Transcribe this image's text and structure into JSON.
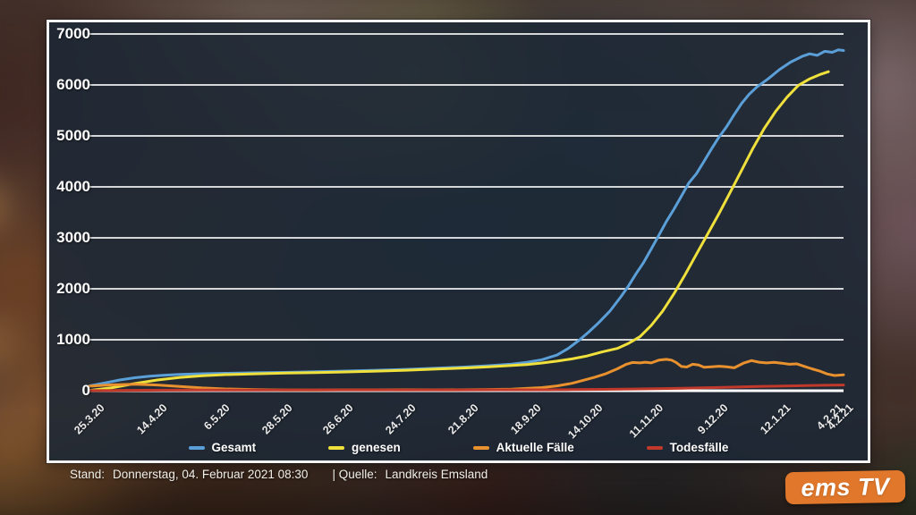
{
  "chart_data": {
    "type": "line",
    "title": "",
    "xlabel": "",
    "ylabel": "",
    "ylim": [
      0,
      7000
    ],
    "grid": true,
    "legend_position": "bottom",
    "y_axis": {
      "ticks": [
        {
          "label": "7000",
          "value": 7000
        },
        {
          "label": "6000",
          "value": 6000
        },
        {
          "label": "5000",
          "value": 5000
        },
        {
          "label": "4000",
          "value": 4000
        },
        {
          "label": "3000",
          "value": 3000
        },
        {
          "label": "2000",
          "value": 2000
        },
        {
          "label": "1000",
          "value": 1000
        },
        {
          "label": "0",
          "value": 0
        }
      ]
    },
    "x_axis": {
      "ticks": [
        {
          "label": "25.3.20",
          "t": 0.0
        },
        {
          "label": "14.4.20",
          "t": 0.083
        },
        {
          "label": "6.5.20",
          "t": 0.166
        },
        {
          "label": "28.5.20",
          "t": 0.249
        },
        {
          "label": "26.6.20",
          "t": 0.329
        },
        {
          "label": "24.7.20",
          "t": 0.412
        },
        {
          "label": "21.8.20",
          "t": 0.495
        },
        {
          "label": "18.9.20",
          "t": 0.578
        },
        {
          "label": "14.10.20",
          "t": 0.66
        },
        {
          "label": "11.11.20",
          "t": 0.741
        },
        {
          "label": "9.12.20",
          "t": 0.827
        },
        {
          "label": "12.1.21",
          "t": 0.91
        },
        {
          "label": "4.2.21",
          "t": 0.978
        },
        {
          "label": "4.2.21",
          "t": 0.993
        }
      ]
    },
    "series": [
      {
        "name": "Gesamt",
        "color": "#5b9fd8",
        "points": [
          [
            0,
            95
          ],
          [
            0.02,
            150
          ],
          [
            0.04,
            210
          ],
          [
            0.06,
            255
          ],
          [
            0.08,
            285
          ],
          [
            0.1,
            305
          ],
          [
            0.12,
            320
          ],
          [
            0.15,
            333
          ],
          [
            0.18,
            342
          ],
          [
            0.22,
            352
          ],
          [
            0.26,
            360
          ],
          [
            0.3,
            372
          ],
          [
            0.34,
            386
          ],
          [
            0.38,
            402
          ],
          [
            0.42,
            420
          ],
          [
            0.46,
            442
          ],
          [
            0.5,
            466
          ],
          [
            0.53,
            492
          ],
          [
            0.56,
            522
          ],
          [
            0.58,
            558
          ],
          [
            0.6,
            608
          ],
          [
            0.62,
            700
          ],
          [
            0.635,
            830
          ],
          [
            0.65,
            1000
          ],
          [
            0.662,
            1150
          ],
          [
            0.675,
            1330
          ],
          [
            0.69,
            1560
          ],
          [
            0.705,
            1850
          ],
          [
            0.715,
            2060
          ],
          [
            0.725,
            2300
          ],
          [
            0.735,
            2520
          ],
          [
            0.745,
            2780
          ],
          [
            0.755,
            3050
          ],
          [
            0.765,
            3320
          ],
          [
            0.775,
            3560
          ],
          [
            0.785,
            3820
          ],
          [
            0.795,
            4080
          ],
          [
            0.805,
            4260
          ],
          [
            0.815,
            4500
          ],
          [
            0.825,
            4750
          ],
          [
            0.835,
            4980
          ],
          [
            0.845,
            5180
          ],
          [
            0.855,
            5420
          ],
          [
            0.865,
            5640
          ],
          [
            0.875,
            5820
          ],
          [
            0.885,
            5960
          ],
          [
            0.9,
            6120
          ],
          [
            0.915,
            6300
          ],
          [
            0.93,
            6450
          ],
          [
            0.945,
            6560
          ],
          [
            0.955,
            6610
          ],
          [
            0.965,
            6580
          ],
          [
            0.975,
            6660
          ],
          [
            0.985,
            6640
          ],
          [
            0.993,
            6690
          ],
          [
            1.0,
            6675
          ]
        ]
      },
      {
        "name": "genesen",
        "color": "#f0e03c",
        "points": [
          [
            0,
            5
          ],
          [
            0.03,
            60
          ],
          [
            0.06,
            140
          ],
          [
            0.09,
            210
          ],
          [
            0.12,
            262
          ],
          [
            0.15,
            295
          ],
          [
            0.18,
            315
          ],
          [
            0.22,
            332
          ],
          [
            0.26,
            345
          ],
          [
            0.3,
            356
          ],
          [
            0.34,
            368
          ],
          [
            0.38,
            384
          ],
          [
            0.42,
            402
          ],
          [
            0.46,
            424
          ],
          [
            0.5,
            447
          ],
          [
            0.53,
            468
          ],
          [
            0.56,
            494
          ],
          [
            0.58,
            514
          ],
          [
            0.6,
            544
          ],
          [
            0.62,
            580
          ],
          [
            0.64,
            625
          ],
          [
            0.66,
            682
          ],
          [
            0.68,
            762
          ],
          [
            0.7,
            830
          ],
          [
            0.715,
            930
          ],
          [
            0.73,
            1060
          ],
          [
            0.745,
            1280
          ],
          [
            0.76,
            1560
          ],
          [
            0.775,
            1900
          ],
          [
            0.79,
            2280
          ],
          [
            0.805,
            2680
          ],
          [
            0.82,
            3080
          ],
          [
            0.835,
            3480
          ],
          [
            0.85,
            3900
          ],
          [
            0.865,
            4330
          ],
          [
            0.88,
            4760
          ],
          [
            0.895,
            5150
          ],
          [
            0.91,
            5480
          ],
          [
            0.925,
            5760
          ],
          [
            0.94,
            5990
          ],
          [
            0.955,
            6120
          ],
          [
            0.968,
            6200
          ],
          [
            0.98,
            6260
          ]
        ]
      },
      {
        "name": "Aktuelle Fälle",
        "color": "#e8912e",
        "points": [
          [
            0,
            90
          ],
          [
            0.03,
            115
          ],
          [
            0.06,
            127
          ],
          [
            0.09,
            112
          ],
          [
            0.12,
            85
          ],
          [
            0.15,
            55
          ],
          [
            0.18,
            35
          ],
          [
            0.22,
            22
          ],
          [
            0.26,
            15
          ],
          [
            0.3,
            14
          ],
          [
            0.34,
            17
          ],
          [
            0.38,
            18
          ],
          [
            0.42,
            20
          ],
          [
            0.46,
            18
          ],
          [
            0.5,
            20
          ],
          [
            0.53,
            25
          ],
          [
            0.56,
            32
          ],
          [
            0.58,
            45
          ],
          [
            0.6,
            62
          ],
          [
            0.62,
            95
          ],
          [
            0.64,
            145
          ],
          [
            0.655,
            205
          ],
          [
            0.67,
            265
          ],
          [
            0.685,
            335
          ],
          [
            0.7,
            430
          ],
          [
            0.712,
            520
          ],
          [
            0.72,
            555
          ],
          [
            0.73,
            545
          ],
          [
            0.737,
            560
          ],
          [
            0.745,
            545
          ],
          [
            0.755,
            600
          ],
          [
            0.765,
            615
          ],
          [
            0.772,
            600
          ],
          [
            0.778,
            555
          ],
          [
            0.785,
            475
          ],
          [
            0.792,
            465
          ],
          [
            0.8,
            520
          ],
          [
            0.808,
            505
          ],
          [
            0.815,
            460
          ],
          [
            0.825,
            470
          ],
          [
            0.835,
            480
          ],
          [
            0.845,
            468
          ],
          [
            0.855,
            450
          ],
          [
            0.868,
            545
          ],
          [
            0.878,
            592
          ],
          [
            0.888,
            560
          ],
          [
            0.898,
            545
          ],
          [
            0.908,
            558
          ],
          [
            0.918,
            540
          ],
          [
            0.928,
            520
          ],
          [
            0.938,
            528
          ],
          [
            0.948,
            478
          ],
          [
            0.958,
            430
          ],
          [
            0.968,
            388
          ],
          [
            0.978,
            330
          ],
          [
            0.988,
            298
          ],
          [
            1.0,
            312
          ]
        ]
      },
      {
        "name": "Todesfälle",
        "color": "#c1392b",
        "points": [
          [
            0,
            2
          ],
          [
            0.05,
            7
          ],
          [
            0.1,
            11
          ],
          [
            0.15,
            13
          ],
          [
            0.22,
            14
          ],
          [
            0.3,
            15
          ],
          [
            0.38,
            15
          ],
          [
            0.46,
            16
          ],
          [
            0.54,
            17
          ],
          [
            0.6,
            18
          ],
          [
            0.64,
            21
          ],
          [
            0.68,
            26
          ],
          [
            0.72,
            33
          ],
          [
            0.76,
            42
          ],
          [
            0.8,
            53
          ],
          [
            0.84,
            66
          ],
          [
            0.88,
            80
          ],
          [
            0.92,
            92
          ],
          [
            0.95,
            100
          ],
          [
            0.975,
            107
          ],
          [
            1.0,
            113
          ]
        ]
      }
    ]
  },
  "footer": {
    "stand_label": "Stand:",
    "stand_value": "Donnerstag, 04. Februar 2021 08:30",
    "quelle_label": "| Quelle:",
    "quelle_value": "Landkreis Emsland"
  },
  "branding": {
    "logo_ems": "ems",
    "logo_tv": "TV",
    "logo_bg": "#e0772b"
  }
}
